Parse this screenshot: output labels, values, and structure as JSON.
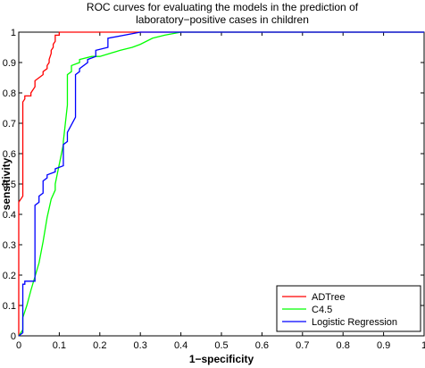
{
  "chart_data": {
    "type": "line",
    "title_line1": "ROC curves for evaluating the models in the prediction of",
    "title_line2": "laboratory−positive cases in children",
    "xlabel": "1−specificity",
    "ylabel": "sensitivity",
    "xlim": [
      0,
      1
    ],
    "ylim": [
      0,
      1
    ],
    "x_ticks": [
      "0",
      "0.1",
      "0.2",
      "0.3",
      "0.4",
      "0.5",
      "0.6",
      "0.7",
      "0.8",
      "0.9",
      "1"
    ],
    "y_ticks": [
      "0",
      "0.1",
      "0.2",
      "0.3",
      "0.4",
      "0.5",
      "0.6",
      "0.7",
      "0.8",
      "0.9",
      "1"
    ],
    "grid": false,
    "legend_position": "bottom-right",
    "series": [
      {
        "name": "ADTree",
        "color": "#ff0000",
        "x": [
          0,
          0,
          0.01,
          0.01,
          0.015,
          0.015,
          0.03,
          0.03,
          0.04,
          0.04,
          0.05,
          0.05,
          0.06,
          0.06,
          0.07,
          0.07,
          0.075,
          0.075,
          0.08,
          0.08,
          0.085,
          0.085,
          0.09,
          0.09,
          0.1,
          0.1,
          0.12,
          0.12,
          0.2,
          0.2,
          1
        ],
        "y": [
          0,
          0.44,
          0.46,
          0.77,
          0.78,
          0.79,
          0.79,
          0.8,
          0.82,
          0.84,
          0.85,
          0.85,
          0.86,
          0.87,
          0.88,
          0.89,
          0.9,
          0.91,
          0.93,
          0.94,
          0.95,
          0.96,
          0.97,
          0.99,
          0.99,
          1,
          1,
          1,
          1,
          1,
          1
        ]
      },
      {
        "name": "C4.5",
        "color": "#00ff00",
        "x": [
          0,
          0.01,
          0.01,
          0.02,
          0.03,
          0.05,
          0.06,
          0.07,
          0.08,
          0.09,
          0.09,
          0.11,
          0.11,
          0.12,
          0.12,
          0.13,
          0.13,
          0.15,
          0.15,
          0.18,
          0.2,
          0.25,
          0.28,
          0.3,
          0.33,
          0.36,
          0.4,
          1
        ],
        "y": [
          0,
          0.02,
          0.06,
          0.1,
          0.15,
          0.24,
          0.31,
          0.39,
          0.45,
          0.48,
          0.5,
          0.63,
          0.64,
          0.76,
          0.86,
          0.87,
          0.89,
          0.9,
          0.91,
          0.92,
          0.92,
          0.94,
          0.95,
          0.96,
          0.98,
          0.99,
          1,
          1
        ]
      },
      {
        "name": "Logistic Regression",
        "color": "#0000ff",
        "x": [
          0,
          0.01,
          0.01,
          0.015,
          0.015,
          0.04,
          0.04,
          0.05,
          0.05,
          0.06,
          0.06,
          0.07,
          0.07,
          0.09,
          0.09,
          0.11,
          0.11,
          0.12,
          0.12,
          0.14,
          0.14,
          0.15,
          0.15,
          0.17,
          0.17,
          0.19,
          0.19,
          0.22,
          0.22,
          0.3,
          1
        ],
        "y": [
          0,
          0.01,
          0.17,
          0.17,
          0.18,
          0.18,
          0.43,
          0.44,
          0.46,
          0.47,
          0.51,
          0.52,
          0.53,
          0.54,
          0.55,
          0.56,
          0.63,
          0.64,
          0.67,
          0.72,
          0.86,
          0.87,
          0.88,
          0.9,
          0.91,
          0.92,
          0.94,
          0.95,
          0.98,
          1,
          1
        ]
      }
    ]
  }
}
